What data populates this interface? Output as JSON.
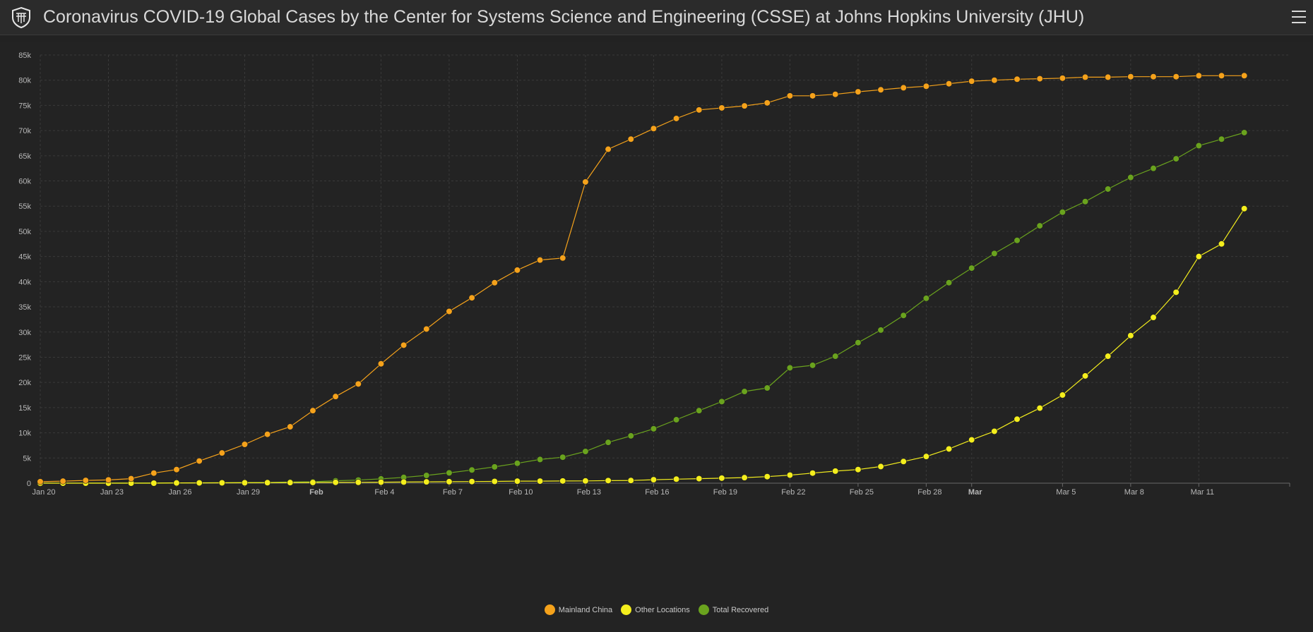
{
  "header": {
    "title": "Coronavirus COVID-19 Global Cases by the Center for Systems Science and Engineering (CSSE) at Johns Hopkins University (JHU)",
    "logo_icon": "university-shield-icon",
    "menu_icon": "hamburger-menu-icon"
  },
  "colors": {
    "background": "#222222",
    "mainland_china": "#f5a21b",
    "other_locations": "#f4ee1d",
    "total_recovered": "#6aa31e",
    "grid": "#3a3a3a"
  },
  "chart_data": {
    "type": "line",
    "title": "",
    "xlabel": "",
    "ylabel": "",
    "ylim": [
      0,
      85000
    ],
    "y_ticks": [
      "0",
      "5k",
      "10k",
      "15k",
      "20k",
      "25k",
      "30k",
      "35k",
      "40k",
      "45k",
      "50k",
      "55k",
      "60k",
      "65k",
      "70k",
      "75k",
      "80k",
      "85k"
    ],
    "x_ticks": [
      {
        "label": "Jan 20",
        "date": "2020-01-20",
        "bold": false
      },
      {
        "label": "Jan 23",
        "date": "2020-01-23",
        "bold": false
      },
      {
        "label": "Jan 26",
        "date": "2020-01-26",
        "bold": false
      },
      {
        "label": "Jan 29",
        "date": "2020-01-29",
        "bold": false
      },
      {
        "label": "Feb",
        "date": "2020-02-01",
        "bold": true
      },
      {
        "label": "Feb 4",
        "date": "2020-02-04",
        "bold": false
      },
      {
        "label": "Feb 7",
        "date": "2020-02-07",
        "bold": false
      },
      {
        "label": "Feb 10",
        "date": "2020-02-10",
        "bold": false
      },
      {
        "label": "Feb 13",
        "date": "2020-02-13",
        "bold": false
      },
      {
        "label": "Feb 16",
        "date": "2020-02-16",
        "bold": false
      },
      {
        "label": "Feb 19",
        "date": "2020-02-19",
        "bold": false
      },
      {
        "label": "Feb 22",
        "date": "2020-02-22",
        "bold": false
      },
      {
        "label": "Feb 25",
        "date": "2020-02-25",
        "bold": false
      },
      {
        "label": "Feb 28",
        "date": "2020-02-28",
        "bold": false
      },
      {
        "label": "Mar",
        "date": "2020-03-01",
        "bold": true
      },
      {
        "label": "Mar 5",
        "date": "2020-03-05",
        "bold": false
      },
      {
        "label": "Mar 8",
        "date": "2020-03-08",
        "bold": false
      },
      {
        "label": "Mar 11",
        "date": "2020-03-11",
        "bold": false
      }
    ],
    "x_range": [
      "2020-01-20",
      "2020-03-15"
    ],
    "grid": true,
    "legend_position": "bottom-center",
    "series": [
      {
        "name": "Mainland China",
        "color": "#f5a21b",
        "points": [
          {
            "x": "2020-01-20",
            "y": 300
          },
          {
            "x": "2020-01-21",
            "y": 400
          },
          {
            "x": "2020-01-22",
            "y": 550
          },
          {
            "x": "2020-01-23",
            "y": 650
          },
          {
            "x": "2020-01-24",
            "y": 900
          },
          {
            "x": "2020-01-25",
            "y": 2000
          },
          {
            "x": "2020-01-26",
            "y": 2700
          },
          {
            "x": "2020-01-27",
            "y": 4400
          },
          {
            "x": "2020-01-28",
            "y": 6000
          },
          {
            "x": "2020-01-29",
            "y": 7700
          },
          {
            "x": "2020-01-30",
            "y": 9700
          },
          {
            "x": "2020-01-31",
            "y": 11200
          },
          {
            "x": "2020-02-01",
            "y": 14400
          },
          {
            "x": "2020-02-02",
            "y": 17200
          },
          {
            "x": "2020-02-03",
            "y": 19700
          },
          {
            "x": "2020-02-04",
            "y": 23700
          },
          {
            "x": "2020-02-05",
            "y": 27400
          },
          {
            "x": "2020-02-06",
            "y": 30600
          },
          {
            "x": "2020-02-07",
            "y": 34100
          },
          {
            "x": "2020-02-08",
            "y": 36800
          },
          {
            "x": "2020-02-09",
            "y": 39800
          },
          {
            "x": "2020-02-10",
            "y": 42300
          },
          {
            "x": "2020-02-11",
            "y": 44300
          },
          {
            "x": "2020-02-12",
            "y": 44700
          },
          {
            "x": "2020-02-13",
            "y": 59800
          },
          {
            "x": "2020-02-14",
            "y": 66300
          },
          {
            "x": "2020-02-15",
            "y": 68300
          },
          {
            "x": "2020-02-16",
            "y": 70400
          },
          {
            "x": "2020-02-17",
            "y": 72400
          },
          {
            "x": "2020-02-18",
            "y": 74100
          },
          {
            "x": "2020-02-19",
            "y": 74500
          },
          {
            "x": "2020-02-20",
            "y": 74900
          },
          {
            "x": "2020-02-21",
            "y": 75500
          },
          {
            "x": "2020-02-22",
            "y": 76900
          },
          {
            "x": "2020-02-23",
            "y": 76900
          },
          {
            "x": "2020-02-24",
            "y": 77200
          },
          {
            "x": "2020-02-25",
            "y": 77700
          },
          {
            "x": "2020-02-26",
            "y": 78100
          },
          {
            "x": "2020-02-27",
            "y": 78500
          },
          {
            "x": "2020-02-28",
            "y": 78800
          },
          {
            "x": "2020-02-29",
            "y": 79300
          },
          {
            "x": "2020-03-01",
            "y": 79800
          },
          {
            "x": "2020-03-02",
            "y": 80000
          },
          {
            "x": "2020-03-03",
            "y": 80200
          },
          {
            "x": "2020-03-04",
            "y": 80300
          },
          {
            "x": "2020-03-05",
            "y": 80400
          },
          {
            "x": "2020-03-06",
            "y": 80600
          },
          {
            "x": "2020-03-07",
            "y": 80600
          },
          {
            "x": "2020-03-08",
            "y": 80700
          },
          {
            "x": "2020-03-09",
            "y": 80700
          },
          {
            "x": "2020-03-10",
            "y": 80700
          },
          {
            "x": "2020-03-11",
            "y": 80900
          },
          {
            "x": "2020-03-12",
            "y": 80900
          },
          {
            "x": "2020-03-13",
            "y": 80900
          }
        ]
      },
      {
        "name": "Other Locations",
        "color": "#f4ee1d",
        "points": [
          {
            "x": "2020-01-20",
            "y": 0
          },
          {
            "x": "2020-01-21",
            "y": 0
          },
          {
            "x": "2020-01-22",
            "y": 0
          },
          {
            "x": "2020-01-23",
            "y": 0
          },
          {
            "x": "2020-01-24",
            "y": 0
          },
          {
            "x": "2020-01-25",
            "y": 0
          },
          {
            "x": "2020-01-26",
            "y": 50
          },
          {
            "x": "2020-01-27",
            "y": 60
          },
          {
            "x": "2020-01-28",
            "y": 70
          },
          {
            "x": "2020-01-29",
            "y": 80
          },
          {
            "x": "2020-01-30",
            "y": 100
          },
          {
            "x": "2020-01-31",
            "y": 120
          },
          {
            "x": "2020-02-01",
            "y": 140
          },
          {
            "x": "2020-02-02",
            "y": 160
          },
          {
            "x": "2020-02-03",
            "y": 170
          },
          {
            "x": "2020-02-04",
            "y": 200
          },
          {
            "x": "2020-02-05",
            "y": 220
          },
          {
            "x": "2020-02-06",
            "y": 260
          },
          {
            "x": "2020-02-07",
            "y": 290
          },
          {
            "x": "2020-02-08",
            "y": 320
          },
          {
            "x": "2020-02-09",
            "y": 350
          },
          {
            "x": "2020-02-10",
            "y": 400
          },
          {
            "x": "2020-02-11",
            "y": 410
          },
          {
            "x": "2020-02-12",
            "y": 440
          },
          {
            "x": "2020-02-13",
            "y": 450
          },
          {
            "x": "2020-02-14",
            "y": 510
          },
          {
            "x": "2020-02-15",
            "y": 530
          },
          {
            "x": "2020-02-16",
            "y": 690
          },
          {
            "x": "2020-02-17",
            "y": 800
          },
          {
            "x": "2020-02-18",
            "y": 900
          },
          {
            "x": "2020-02-19",
            "y": 1000
          },
          {
            "x": "2020-02-20",
            "y": 1100
          },
          {
            "x": "2020-02-21",
            "y": 1300
          },
          {
            "x": "2020-02-22",
            "y": 1600
          },
          {
            "x": "2020-02-23",
            "y": 2000
          },
          {
            "x": "2020-02-24",
            "y": 2400
          },
          {
            "x": "2020-02-25",
            "y": 2700
          },
          {
            "x": "2020-02-26",
            "y": 3300
          },
          {
            "x": "2020-02-27",
            "y": 4300
          },
          {
            "x": "2020-02-28",
            "y": 5300
          },
          {
            "x": "2020-02-29",
            "y": 6800
          },
          {
            "x": "2020-03-01",
            "y": 8600
          },
          {
            "x": "2020-03-02",
            "y": 10300
          },
          {
            "x": "2020-03-03",
            "y": 12700
          },
          {
            "x": "2020-03-04",
            "y": 14900
          },
          {
            "x": "2020-03-05",
            "y": 17500
          },
          {
            "x": "2020-03-06",
            "y": 21300
          },
          {
            "x": "2020-03-07",
            "y": 25200
          },
          {
            "x": "2020-03-08",
            "y": 29300
          },
          {
            "x": "2020-03-09",
            "y": 32900
          },
          {
            "x": "2020-03-10",
            "y": 37900
          },
          {
            "x": "2020-03-11",
            "y": 45000
          },
          {
            "x": "2020-03-12",
            "y": 47500
          },
          {
            "x": "2020-03-13",
            "y": 54500
          }
        ]
      },
      {
        "name": "Total Recovered",
        "color": "#6aa31e",
        "points": [
          {
            "x": "2020-01-20",
            "y": 30
          },
          {
            "x": "2020-01-21",
            "y": 30
          },
          {
            "x": "2020-01-22",
            "y": 30
          },
          {
            "x": "2020-01-23",
            "y": 40
          },
          {
            "x": "2020-01-24",
            "y": 40
          },
          {
            "x": "2020-01-25",
            "y": 50
          },
          {
            "x": "2020-01-26",
            "y": 60
          },
          {
            "x": "2020-01-27",
            "y": 70
          },
          {
            "x": "2020-01-28",
            "y": 100
          },
          {
            "x": "2020-01-29",
            "y": 120
          },
          {
            "x": "2020-01-30",
            "y": 140
          },
          {
            "x": "2020-01-31",
            "y": 220
          },
          {
            "x": "2020-02-01",
            "y": 280
          },
          {
            "x": "2020-02-02",
            "y": 470
          },
          {
            "x": "2020-02-03",
            "y": 620
          },
          {
            "x": "2020-02-04",
            "y": 850
          },
          {
            "x": "2020-02-05",
            "y": 1150
          },
          {
            "x": "2020-02-06",
            "y": 1540
          },
          {
            "x": "2020-02-07",
            "y": 2050
          },
          {
            "x": "2020-02-08",
            "y": 2620
          },
          {
            "x": "2020-02-09",
            "y": 3240
          },
          {
            "x": "2020-02-10",
            "y": 3950
          },
          {
            "x": "2020-02-11",
            "y": 4700
          },
          {
            "x": "2020-02-12",
            "y": 5150
          },
          {
            "x": "2020-02-13",
            "y": 6300
          },
          {
            "x": "2020-02-14",
            "y": 8100
          },
          {
            "x": "2020-02-15",
            "y": 9400
          },
          {
            "x": "2020-02-16",
            "y": 10800
          },
          {
            "x": "2020-02-17",
            "y": 12600
          },
          {
            "x": "2020-02-18",
            "y": 14400
          },
          {
            "x": "2020-02-19",
            "y": 16200
          },
          {
            "x": "2020-02-20",
            "y": 18200
          },
          {
            "x": "2020-02-21",
            "y": 18900
          },
          {
            "x": "2020-02-22",
            "y": 22900
          },
          {
            "x": "2020-02-23",
            "y": 23400
          },
          {
            "x": "2020-02-24",
            "y": 25200
          },
          {
            "x": "2020-02-25",
            "y": 27900
          },
          {
            "x": "2020-02-26",
            "y": 30400
          },
          {
            "x": "2020-02-27",
            "y": 33300
          },
          {
            "x": "2020-02-28",
            "y": 36700
          },
          {
            "x": "2020-02-29",
            "y": 39800
          },
          {
            "x": "2020-03-01",
            "y": 42700
          },
          {
            "x": "2020-03-02",
            "y": 45600
          },
          {
            "x": "2020-03-03",
            "y": 48200
          },
          {
            "x": "2020-03-04",
            "y": 51100
          },
          {
            "x": "2020-03-05",
            "y": 53800
          },
          {
            "x": "2020-03-06",
            "y": 55900
          },
          {
            "x": "2020-03-07",
            "y": 58400
          },
          {
            "x": "2020-03-08",
            "y": 60700
          },
          {
            "x": "2020-03-09",
            "y": 62500
          },
          {
            "x": "2020-03-10",
            "y": 64400
          },
          {
            "x": "2020-03-11",
            "y": 67000
          },
          {
            "x": "2020-03-12",
            "y": 68300
          },
          {
            "x": "2020-03-13",
            "y": 69600
          }
        ]
      }
    ]
  }
}
